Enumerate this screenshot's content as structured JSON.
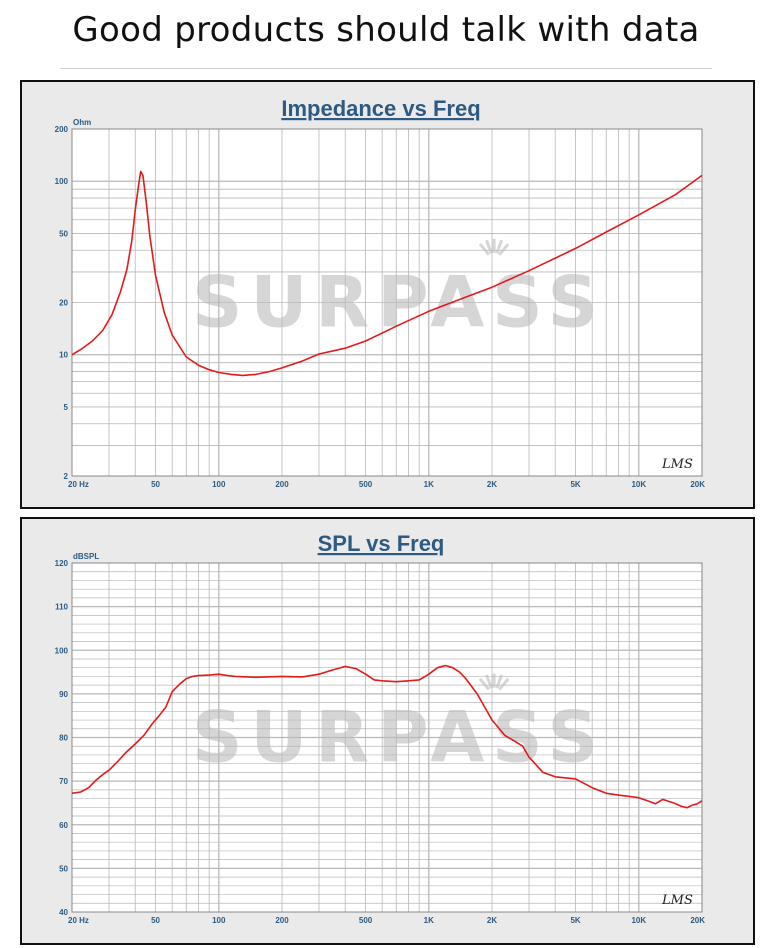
{
  "headline": "Good products should talk with data",
  "watermark": "SURPASS",
  "signature": "LMS",
  "chart_data": [
    {
      "type": "line",
      "title": "Impedance vs Freq",
      "ylabel": "Ohm",
      "xscale": "log",
      "yscale": "log",
      "xlim": [
        20,
        20000
      ],
      "ylim": [
        2,
        200
      ],
      "xticks": [
        {
          "v": 20,
          "label": "20  Hz"
        },
        {
          "v": 50,
          "label": "50"
        },
        {
          "v": 100,
          "label": "100"
        },
        {
          "v": 200,
          "label": "200"
        },
        {
          "v": 500,
          "label": "500"
        },
        {
          "v": 1000,
          "label": "1K"
        },
        {
          "v": 2000,
          "label": "2K"
        },
        {
          "v": 5000,
          "label": "5K"
        },
        {
          "v": 10000,
          "label": "10K"
        },
        {
          "v": 20000,
          "label": "20K"
        }
      ],
      "yticks": [
        {
          "v": 200,
          "label": "200"
        },
        {
          "v": 100,
          "label": "100"
        },
        {
          "v": 50,
          "label": "50"
        },
        {
          "v": 20,
          "label": "20"
        },
        {
          "v": 10,
          "label": "10"
        },
        {
          "v": 5,
          "label": "5"
        },
        {
          "v": 2,
          "label": "2"
        }
      ],
      "grid": true,
      "line_color": "#e41a1a",
      "series": [
        {
          "x": [
            20,
            22,
            25,
            28,
            31,
            34,
            36.5,
            38.5,
            40,
            41.5,
            42.5,
            43.5,
            45,
            47,
            50,
            55,
            60,
            70,
            80,
            90,
            100,
            115,
            130,
            150,
            175,
            200,
            250,
            300,
            400,
            500,
            700,
            1000,
            1500,
            2000,
            3000,
            5000,
            7000,
            10000,
            15000,
            20000
          ],
          "y": [
            10,
            10.7,
            12,
            13.8,
            17,
            23,
            31,
            45,
            68,
            95,
            114,
            108,
            78,
            48,
            28.5,
            17.5,
            13,
            9.7,
            8.7,
            8.2,
            7.9,
            7.7,
            7.6,
            7.7,
            8.0,
            8.4,
            9.2,
            10.1,
            10.9,
            12.0,
            14.6,
            17.8,
            21.5,
            24.5,
            30.5,
            41,
            51,
            64,
            84,
            108
          ]
        }
      ]
    },
    {
      "type": "line",
      "title": "SPL vs Freq",
      "ylabel": "dBSPL",
      "xscale": "log",
      "xlim": [
        20,
        20000
      ],
      "ylim": [
        40,
        120
      ],
      "xticks": [
        {
          "v": 20,
          "label": "20  Hz"
        },
        {
          "v": 50,
          "label": "50"
        },
        {
          "v": 100,
          "label": "100"
        },
        {
          "v": 200,
          "label": "200"
        },
        {
          "v": 500,
          "label": "500"
        },
        {
          "v": 1000,
          "label": "1K"
        },
        {
          "v": 2000,
          "label": "2K"
        },
        {
          "v": 5000,
          "label": "5K"
        },
        {
          "v": 10000,
          "label": "10K"
        },
        {
          "v": 20000,
          "label": "20K"
        }
      ],
      "yticks": [
        {
          "v": 120,
          "label": "120"
        },
        {
          "v": 110,
          "label": "110"
        },
        {
          "v": 100,
          "label": "100"
        },
        {
          "v": 90,
          "label": "90"
        },
        {
          "v": 80,
          "label": "80"
        },
        {
          "v": 70,
          "label": "70"
        },
        {
          "v": 60,
          "label": "60"
        },
        {
          "v": 50,
          "label": "50"
        },
        {
          "v": 40,
          "label": "40"
        }
      ],
      "grid": true,
      "line_color": "#e41a1a",
      "series": [
        {
          "x": [
            20,
            22,
            24,
            26,
            28,
            30,
            33,
            36,
            40,
            44,
            48,
            52,
            56,
            60,
            65,
            70,
            75,
            80,
            90,
            100,
            110,
            120,
            150,
            200,
            250,
            300,
            350,
            400,
            450,
            500,
            550,
            600,
            700,
            800,
            900,
            1000,
            1100,
            1200,
            1300,
            1400,
            1500,
            1700,
            2000,
            2300,
            2600,
            2800,
            3000,
            3500,
            4000,
            5000,
            6000,
            7000,
            8000,
            9000,
            10000,
            11000,
            12000,
            13000,
            14000,
            15000,
            16000,
            17000,
            18000,
            19000,
            20000
          ],
          "y": [
            67.2,
            67.5,
            68.5,
            70.2,
            71.5,
            72.5,
            74.5,
            76.5,
            78.5,
            80.5,
            83,
            85,
            87,
            90.5,
            92.2,
            93.5,
            94,
            94.2,
            94.3,
            94.5,
            94.2,
            94,
            93.8,
            94,
            93.9,
            94.5,
            95.5,
            96.3,
            95.8,
            94.5,
            93.2,
            93,
            92.8,
            93,
            93.2,
            94.5,
            96,
            96.5,
            96,
            95,
            93.5,
            90,
            84,
            80.5,
            79,
            78,
            75.5,
            72,
            71,
            70.5,
            68.5,
            67.2,
            66.8,
            66.5,
            66.2,
            65.5,
            64.8,
            65.8,
            65.3,
            64.8,
            64.2,
            63.9,
            64.5,
            64.8,
            65.5
          ]
        }
      ]
    }
  ]
}
